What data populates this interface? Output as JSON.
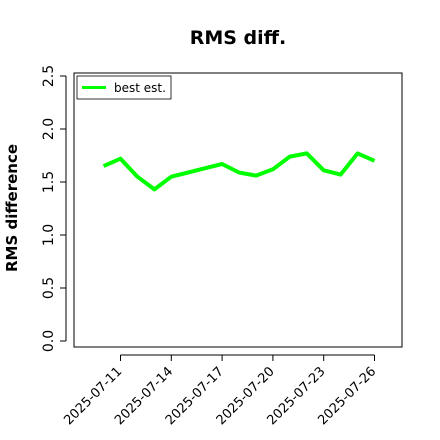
{
  "chart_data": {
    "type": "line",
    "title": "RMS diff.",
    "xlabel": "",
    "ylabel": "RMS difference",
    "ylim": [
      0.0,
      2.5
    ],
    "yticks": [
      "0.0",
      "0.5",
      "1.0",
      "1.5",
      "2.0",
      "2.5"
    ],
    "xlim": [
      "2025-07-09",
      "2025-07-27"
    ],
    "xticks": [
      "2025-07-11",
      "2025-07-14",
      "2025-07-17",
      "2025-07-20",
      "2025-07-23",
      "2025-07-26"
    ],
    "grid": false,
    "legend_position": "top-left",
    "series": [
      {
        "name": "best est.",
        "color": "#00ff00",
        "x": [
          "2025-07-10",
          "2025-07-11",
          "2025-07-12",
          "2025-07-13",
          "2025-07-14",
          "2025-07-15",
          "2025-07-16",
          "2025-07-17",
          "2025-07-18",
          "2025-07-19",
          "2025-07-20",
          "2025-07-21",
          "2025-07-22",
          "2025-07-23",
          "2025-07-24",
          "2025-07-25",
          "2025-07-26"
        ],
        "values": [
          1.65,
          1.72,
          1.55,
          1.43,
          1.55,
          1.59,
          1.63,
          1.67,
          1.59,
          1.56,
          1.62,
          1.74,
          1.77,
          1.61,
          1.57,
          1.77,
          1.7
        ]
      }
    ]
  }
}
